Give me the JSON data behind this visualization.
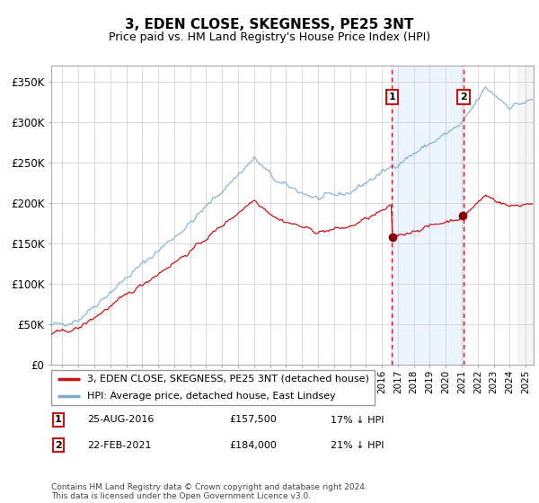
{
  "title": "3, EDEN CLOSE, SKEGNESS, PE25 3NT",
  "subtitle": "Price paid vs. HM Land Registry's House Price Index (HPI)",
  "legend_line1": "3, EDEN CLOSE, SKEGNESS, PE25 3NT (detached house)",
  "legend_line2": "HPI: Average price, detached house, East Lindsey",
  "annotation1_label": "1",
  "annotation1_date": "25-AUG-2016",
  "annotation1_price": "£157,500",
  "annotation1_hpi": "17% ↓ HPI",
  "annotation2_label": "2",
  "annotation2_date": "22-FEB-2021",
  "annotation2_price": "£184,000",
  "annotation2_hpi": "21% ↓ HPI",
  "footer": "Contains HM Land Registry data © Crown copyright and database right 2024.\nThis data is licensed under the Open Government Licence v3.0.",
  "hpi_color": "#7aadd4",
  "price_color": "#cc1111",
  "marker1_x_year": 2016.63,
  "marker2_x_year": 2021.12,
  "marker1_y": 157500,
  "marker2_y": 184000,
  "ylim": [
    0,
    370000
  ],
  "xlim_start": 1995.3,
  "xlim_end": 2025.5,
  "xtick_start": 1996,
  "xtick_end": 2025
}
